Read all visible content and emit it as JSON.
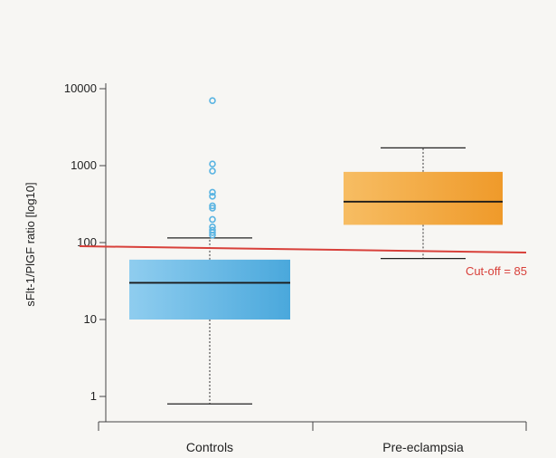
{
  "chart_data": {
    "type": "box",
    "ylabel": "sFlt-1/PlGF ratio [log10]",
    "yscale": "log",
    "ylim": [
      0.6,
      12000
    ],
    "y_ticks": [
      1,
      10,
      100,
      1000,
      10000
    ],
    "y_tick_labels": [
      "1",
      "10",
      "100",
      "1000",
      "10000"
    ],
    "categories": [
      "Controls",
      "Pre-eclampsia"
    ],
    "series": [
      {
        "category": "Controls",
        "color": "#5ab4e2",
        "whisker_low": 0.8,
        "q1": 10,
        "median": 30,
        "q3": 60,
        "whisker_high": 115,
        "outliers": [
          7000,
          1050,
          850,
          450,
          400,
          300,
          280,
          200,
          160,
          145,
          135,
          125
        ]
      },
      {
        "category": "Pre-eclampsia",
        "color": "#f2a436",
        "whisker_low": 62,
        "q1": 170,
        "median": 340,
        "q3": 830,
        "whisker_high": 1700,
        "outliers": []
      }
    ],
    "cutoff": {
      "value": 85,
      "label": "Cut-off = 85",
      "color": "#d8403a"
    },
    "grid": false
  }
}
